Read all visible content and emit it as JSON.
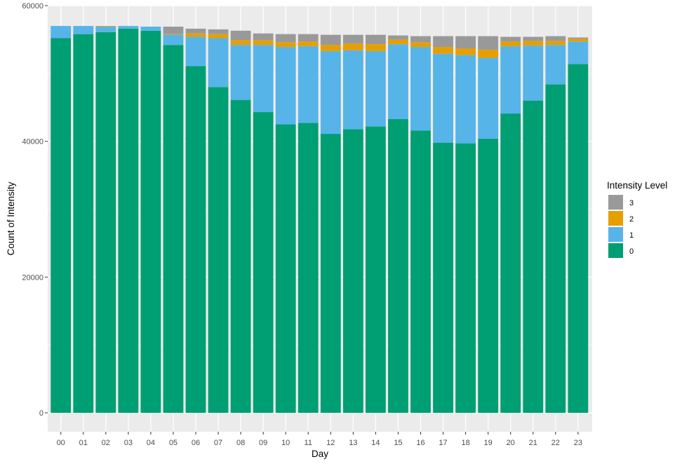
{
  "chart_data": {
    "type": "bar",
    "stacked": true,
    "xlabel": "Day",
    "ylabel": "Count of Intensity",
    "ylim": [
      0,
      60000
    ],
    "yticks": [
      0,
      20000,
      40000,
      60000
    ],
    "ytick_labels": [
      "0",
      "20000",
      "40000",
      "60000"
    ],
    "grid": true,
    "legend": {
      "title": "Intensity Level",
      "position": "right",
      "entries": [
        "3",
        "2",
        "1",
        "0"
      ]
    },
    "categories": [
      "00",
      "01",
      "02",
      "03",
      "04",
      "05",
      "06",
      "07",
      "08",
      "09",
      "10",
      "11",
      "12",
      "13",
      "14",
      "15",
      "16",
      "17",
      "18",
      "19",
      "20",
      "21",
      "22",
      "23"
    ],
    "series": [
      {
        "name": "0",
        "color": "#009E73",
        "values": [
          55200,
          55800,
          56100,
          56600,
          56300,
          54200,
          51100,
          48000,
          46100,
          44300,
          42500,
          42700,
          41100,
          41800,
          42200,
          43300,
          41600,
          39800,
          39700,
          40400,
          44100,
          46000,
          48400,
          51400
        ]
      },
      {
        "name": "1",
        "color": "#56B4E9",
        "values": [
          1800,
          1200,
          800,
          400,
          600,
          1500,
          4300,
          7200,
          8100,
          9900,
          11400,
          11300,
          12200,
          11600,
          11100,
          11000,
          12300,
          13100,
          13000,
          11900,
          9900,
          8100,
          5800,
          3300
        ]
      },
      {
        "name": "2",
        "color": "#E69F00",
        "values": [
          0,
          0,
          100,
          0,
          0,
          100,
          500,
          600,
          700,
          700,
          700,
          700,
          900,
          1000,
          1000,
          700,
          700,
          1000,
          1000,
          1200,
          700,
          700,
          600,
          400
        ]
      },
      {
        "name": "3",
        "color": "#999999",
        "values": [
          0,
          0,
          0,
          0,
          0,
          1100,
          700,
          700,
          1400,
          1000,
          1200,
          1100,
          1500,
          1300,
          1400,
          600,
          900,
          1600,
          1800,
          2000,
          700,
          600,
          700,
          200
        ]
      }
    ]
  }
}
